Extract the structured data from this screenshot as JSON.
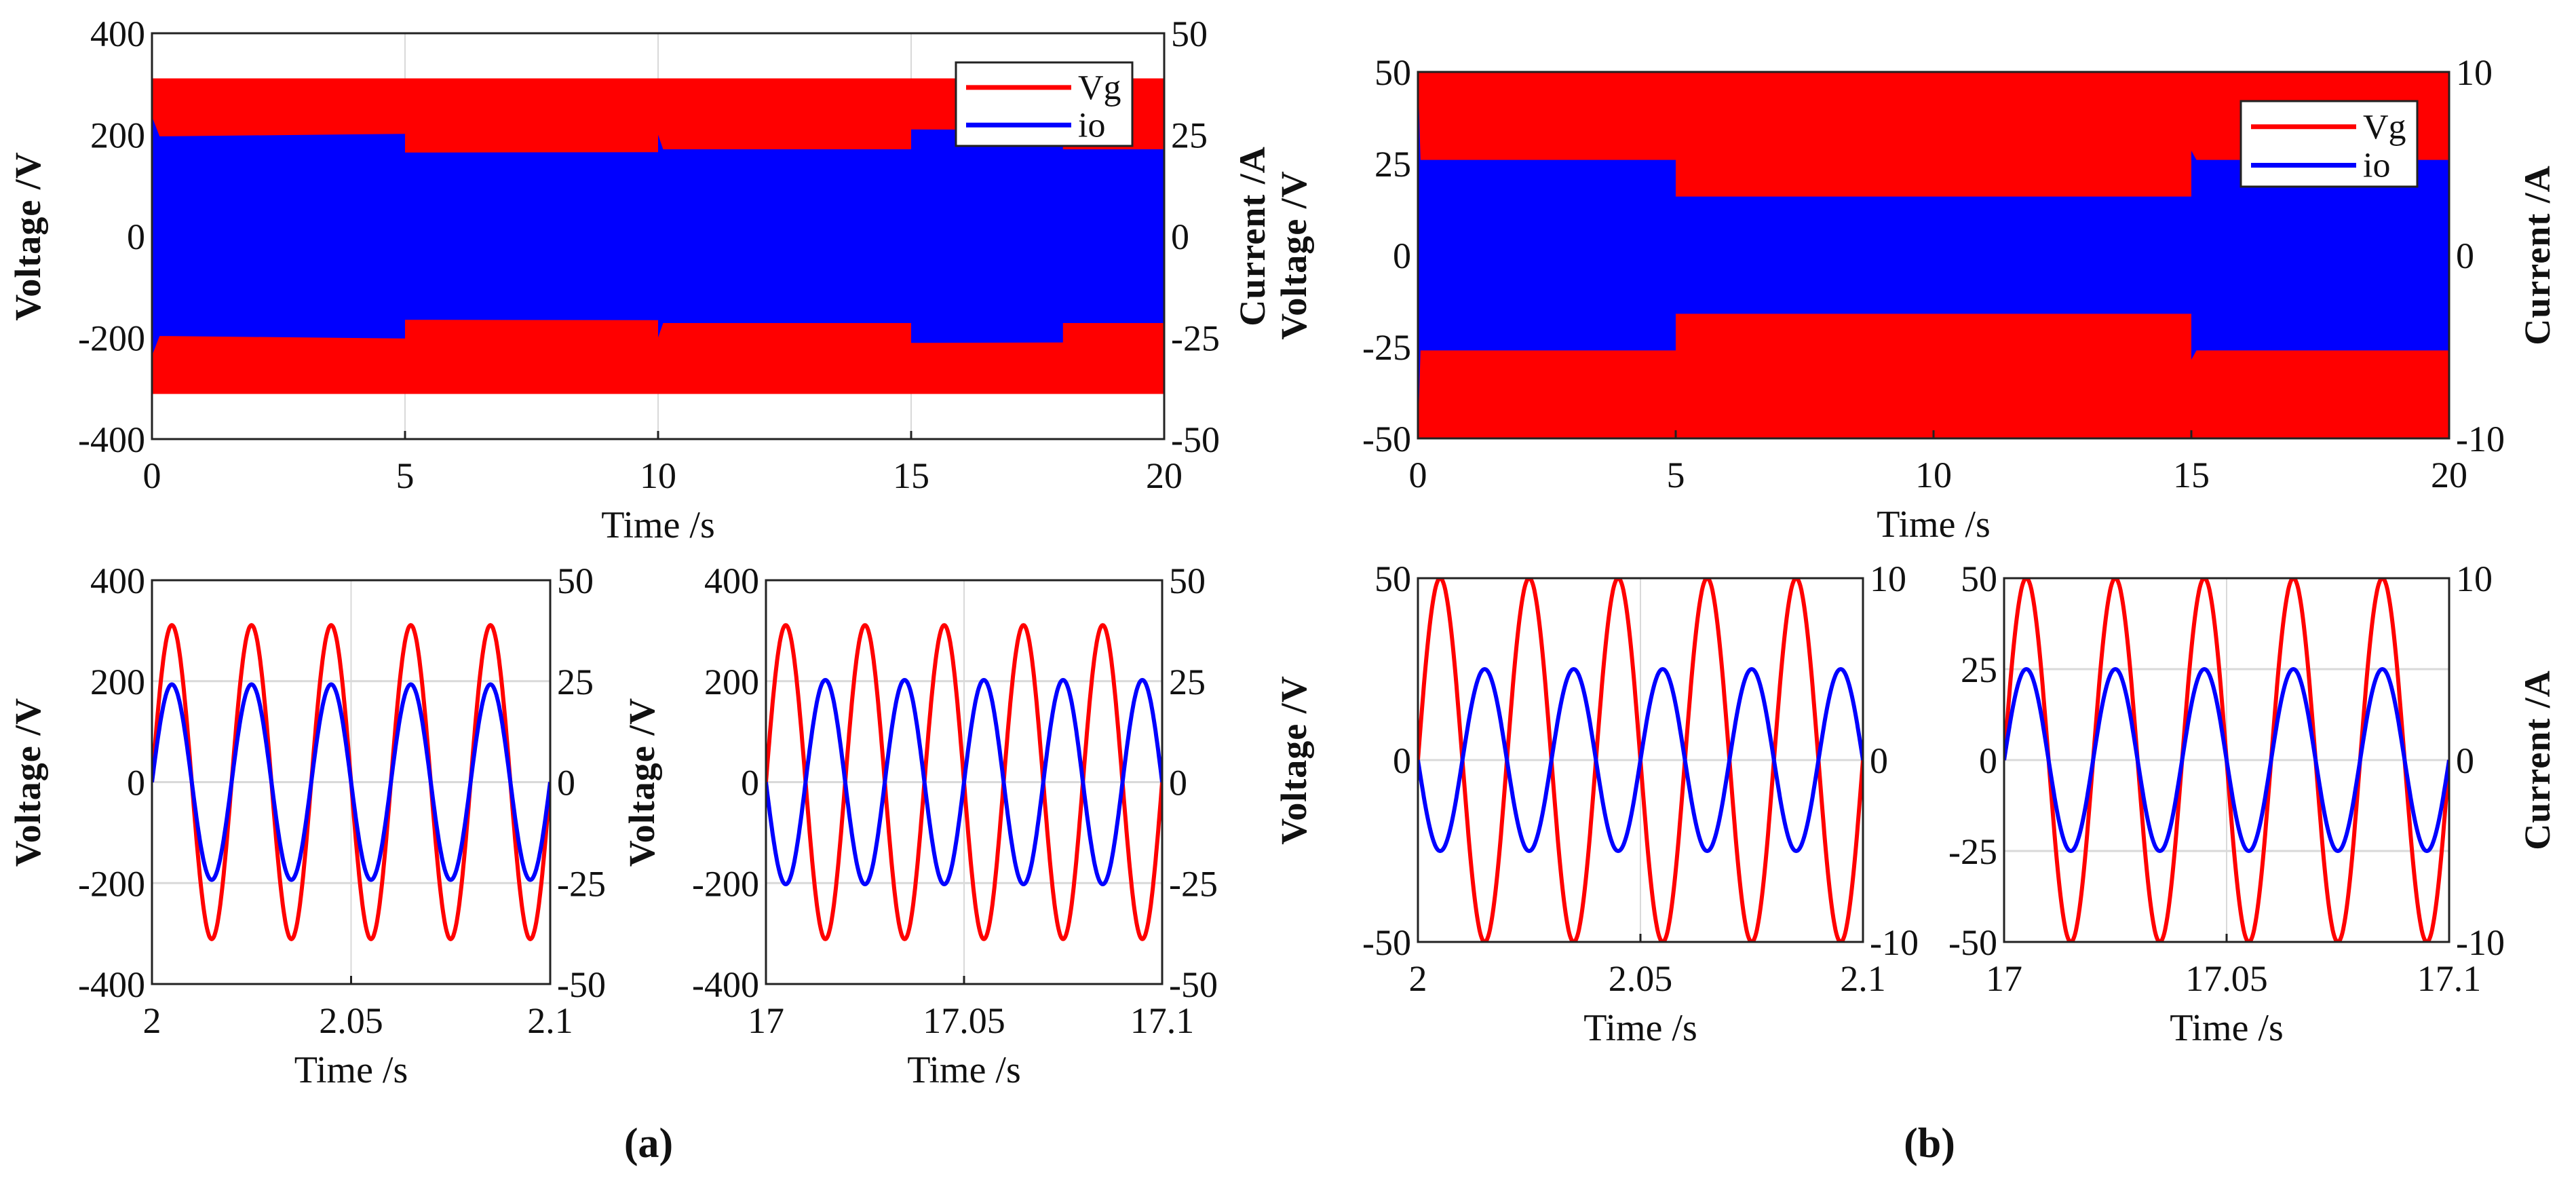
{
  "captions": {
    "a": "(a)",
    "b": "(b)"
  },
  "colors": {
    "Vg": "#ff0000",
    "io": "#0000ff",
    "grid": "#d9d9d9",
    "axis": "#222222"
  },
  "chart_data": [
    {
      "panel": "a",
      "position": "top",
      "type": "line",
      "xlim": [
        0,
        20
      ],
      "ylim_left": [
        -400,
        400
      ],
      "ylim_right": [
        -50,
        50
      ],
      "xticks": [
        0,
        5,
        10,
        15,
        20
      ],
      "yticks_left": [
        400,
        200,
        0,
        -200,
        -400
      ],
      "yticks_right": [
        50,
        25,
        0,
        -25,
        -50
      ],
      "xlabel": "Time /s",
      "ylabel_left": "Voltage /V",
      "ylabel_right": "Current /A",
      "legend": {
        "placement": "top-right",
        "entries": [
          "Vg",
          "io"
        ]
      },
      "series": [
        {
          "name": "Vg",
          "axis": "left",
          "kind": "envelope",
          "envelope": [
            [
              0,
              311
            ],
            [
              20,
              311
            ]
          ]
        },
        {
          "name": "io",
          "axis": "right",
          "kind": "envelope",
          "envelope": [
            [
              0,
              29.5
            ],
            [
              0.15,
              24.6
            ],
            [
              5,
              25.2
            ],
            [
              5,
              20.6
            ],
            [
              10,
              20.7
            ],
            [
              10,
              25
            ],
            [
              10.1,
              21.4
            ],
            [
              15,
              21.4
            ],
            [
              15,
              26.3
            ],
            [
              18,
              26.2
            ],
            [
              18,
              21.4
            ],
            [
              20,
              21.4
            ]
          ]
        }
      ]
    },
    {
      "panel": "a",
      "position": "bottom-left",
      "type": "line",
      "xlim": [
        2,
        2.1
      ],
      "ylim_left": [
        -400,
        400
      ],
      "ylim_right": [
        -50,
        50
      ],
      "xticks": [
        2,
        2.05,
        2.1
      ],
      "yticks_left": [
        400,
        200,
        0,
        -200,
        -400
      ],
      "yticks_right": [
        50,
        25,
        0,
        -25,
        -50
      ],
      "xlabel": "Time /s",
      "ylabel_left": "Voltage /V",
      "series": [
        {
          "name": "Vg",
          "axis": "left",
          "kind": "sine",
          "amplitude": 311,
          "frequency_hz": 50,
          "phase_deg": 0
        },
        {
          "name": "io",
          "axis": "right",
          "kind": "sine",
          "amplitude": 24.2,
          "frequency_hz": 50,
          "phase_deg": 0
        }
      ]
    },
    {
      "panel": "a",
      "position": "bottom-right",
      "type": "line",
      "xlim": [
        17,
        17.1
      ],
      "ylim_left": [
        -400,
        400
      ],
      "ylim_right": [
        -50,
        50
      ],
      "xticks": [
        17,
        17.05,
        17.1
      ],
      "yticks_left": [
        400,
        200,
        0,
        -200,
        -400
      ],
      "yticks_right": [
        50,
        25,
        0,
        -25,
        -50
      ],
      "xlabel": "Time /s",
      "ylabel_left": "Voltage /V",
      "series": [
        {
          "name": "Vg",
          "axis": "left",
          "kind": "sine",
          "amplitude": 311,
          "frequency_hz": 50,
          "phase_deg": 0
        },
        {
          "name": "io",
          "axis": "right",
          "kind": "sine",
          "amplitude": 25.3,
          "frequency_hz": 50,
          "phase_deg": 180
        }
      ]
    },
    {
      "panel": "b",
      "position": "top",
      "type": "line",
      "xlim": [
        0,
        20
      ],
      "ylim_left": [
        -50,
        50
      ],
      "ylim_right": [
        -10,
        10
      ],
      "xticks": [
        0,
        5,
        10,
        15,
        20
      ],
      "yticks_left": [
        50,
        25,
        0,
        -25,
        -50
      ],
      "yticks_right": [
        10,
        0,
        -10
      ],
      "xlabel": "Time /s",
      "ylabel_left": "Voltage /V",
      "ylabel_right": "Current /A",
      "legend": {
        "placement": "top-right",
        "entries": [
          "Vg",
          "io"
        ]
      },
      "series": [
        {
          "name": "Vg",
          "axis": "left",
          "kind": "envelope",
          "envelope": [
            [
              0,
              50
            ],
            [
              20,
              50
            ]
          ]
        },
        {
          "name": "io",
          "axis": "right",
          "kind": "envelope",
          "envelope": [
            [
              0,
              10
            ],
            [
              0.05,
              5.2
            ],
            [
              5,
              5.2
            ],
            [
              5,
              3.2
            ],
            [
              15,
              3.2
            ],
            [
              15,
              5.7
            ],
            [
              15.1,
              5.2
            ],
            [
              20,
              5.2
            ]
          ]
        }
      ]
    },
    {
      "panel": "b",
      "position": "bottom-left",
      "type": "line",
      "xlim": [
        2,
        2.1
      ],
      "ylim_left": [
        -50,
        50
      ],
      "ylim_right": [
        -10,
        10
      ],
      "xticks": [
        2,
        2.05,
        2.1
      ],
      "yticks_left": [
        50,
        0,
        -50
      ],
      "yticks_right": [
        10,
        0,
        -10
      ],
      "xlabel": "Time /s",
      "ylabel_left": "Voltage /V",
      "series": [
        {
          "name": "Vg",
          "axis": "left",
          "kind": "sine",
          "amplitude": 50,
          "frequency_hz": 50,
          "phase_deg": 0
        },
        {
          "name": "io",
          "axis": "right",
          "kind": "sine",
          "amplitude": 5,
          "frequency_hz": 50,
          "phase_deg": 180
        }
      ]
    },
    {
      "panel": "b",
      "position": "bottom-right",
      "type": "line",
      "xlim": [
        17,
        17.1
      ],
      "ylim_left": [
        -50,
        50
      ],
      "ylim_right": [
        -10,
        10
      ],
      "xticks": [
        17,
        17.05,
        17.1
      ],
      "yticks_left": [
        50,
        25,
        0,
        -25,
        -50
      ],
      "yticks_right": [
        10,
        0,
        -10
      ],
      "xlabel": "Time /s",
      "ylabel_right": "Current /A",
      "series": [
        {
          "name": "Vg",
          "axis": "left",
          "kind": "sine",
          "amplitude": 50,
          "frequency_hz": 50,
          "phase_deg": 0
        },
        {
          "name": "io",
          "axis": "right",
          "kind": "sine",
          "amplitude": 5,
          "frequency_hz": 50,
          "phase_deg": 0
        }
      ]
    }
  ]
}
